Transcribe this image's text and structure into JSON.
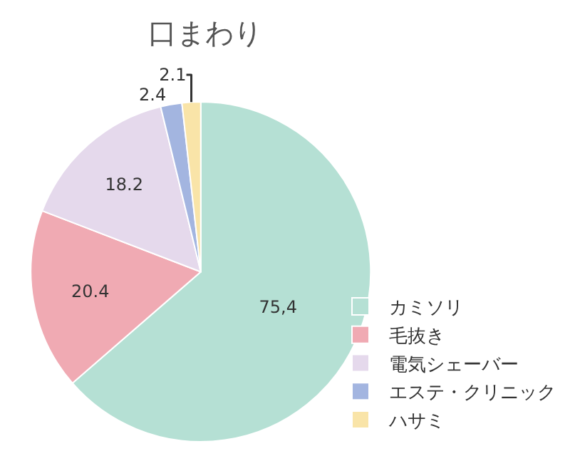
{
  "chart_data": {
    "type": "pie",
    "title": "口まわり",
    "categories": [
      "カミソリ",
      "毛抜き",
      "電気シェーバー",
      "エステ・クリニック",
      "ハサミ"
    ],
    "values": [
      75.4,
      20.4,
      18.2,
      2.4,
      2.1
    ],
    "value_labels": [
      "75,4",
      "20.4",
      "18.2",
      "2.4",
      "2.1"
    ],
    "colors": [
      "#b5e0d4",
      "#f0aab3",
      "#e5d9ec",
      "#a3b5e0",
      "#f9e4a8"
    ],
    "legend": "bottom right"
  }
}
